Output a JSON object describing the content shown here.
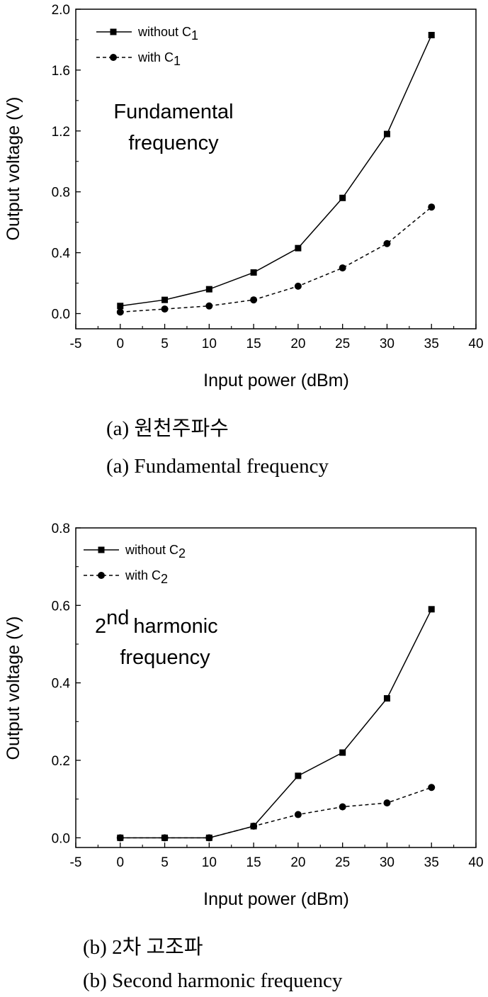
{
  "chart_data": [
    {
      "type": "line",
      "xlabel": "Input power (dBm)",
      "ylabel": "Output voltage (V)",
      "xlim": [
        -5,
        40
      ],
      "ylim": [
        -0.1,
        2.0
      ],
      "x_ticks": [
        -5,
        0,
        5,
        10,
        15,
        20,
        25,
        30,
        35,
        40
      ],
      "y_ticks": [
        "0.0",
        "0.4",
        "0.8",
        "1.2",
        "1.6",
        "2.0"
      ],
      "x": [
        0,
        5,
        10,
        15,
        20,
        25,
        30,
        35
      ],
      "series": [
        {
          "name": "without C",
          "subscript": "1",
          "marker": "square",
          "line": "solid",
          "values": [
            0.05,
            0.09,
            0.16,
            0.27,
            0.43,
            0.76,
            1.18,
            1.83
          ]
        },
        {
          "name": "with C",
          "subscript": "1",
          "marker": "circle",
          "line": "dashed",
          "values": [
            0.01,
            0.03,
            0.05,
            0.09,
            0.18,
            0.3,
            0.46,
            0.7
          ]
        }
      ],
      "annotation": [
        "Fundamental",
        "frequency"
      ],
      "legend_position": "top-left",
      "grid": false,
      "caption_korean": "(a)  원천주파수",
      "caption_english": "(a)  Fundamental  frequency"
    },
    {
      "type": "line",
      "xlabel": "Input power (dBm)",
      "ylabel": "Output voltage (V)",
      "xlim": [
        -5,
        40
      ],
      "ylim": [
        -0.025,
        0.8
      ],
      "x_ticks": [
        -5,
        0,
        5,
        10,
        15,
        20,
        25,
        30,
        35,
        40
      ],
      "y_ticks": [
        "0.0",
        "0.2",
        "0.4",
        "0.6",
        "0.8"
      ],
      "x": [
        0,
        5,
        10,
        15,
        20,
        25,
        30,
        35
      ],
      "series": [
        {
          "name": "without C",
          "subscript": "2",
          "marker": "square",
          "line": "solid",
          "values": [
            0.0,
            0.0,
            0.0,
            0.03,
            0.16,
            0.22,
            0.36,
            0.59
          ]
        },
        {
          "name": "with C",
          "subscript": "2",
          "marker": "circle",
          "line": "dashed",
          "values": [
            0.0,
            0.0,
            0.0,
            0.03,
            0.06,
            0.08,
            0.09,
            0.13
          ]
        }
      ],
      "annotation_number": "2",
      "annotation_sup": "nd",
      "annotation": [
        "harmonic",
        "frequency"
      ],
      "legend_position": "top-left",
      "grid": false,
      "caption_korean": "(b)  2차  고조파",
      "caption_english": "(b)  Second  harmonic  frequency"
    }
  ]
}
